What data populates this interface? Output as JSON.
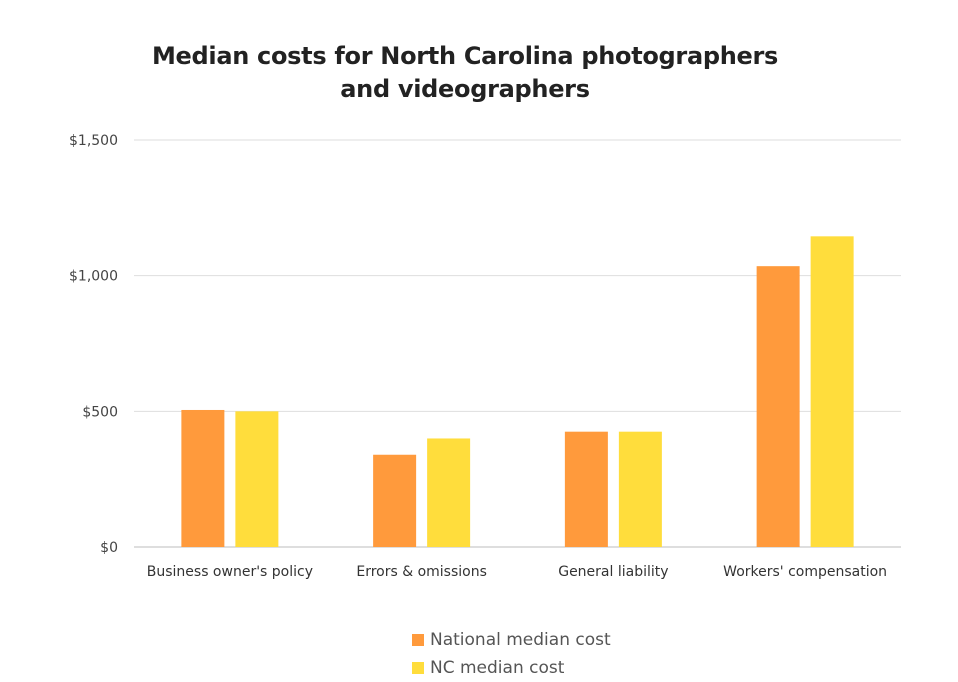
{
  "chart_data": {
    "type": "bar",
    "title": "Median costs for North Carolina photographers and videographers",
    "xlabel": "",
    "ylabel": "",
    "categories": [
      "Business owner's policy",
      "Errors & omissions",
      "General liability",
      "Workers' compensation"
    ],
    "series": [
      {
        "name": "National median cost",
        "color": "#FF9A3C",
        "values": [
          505,
          340,
          425,
          1035
        ]
      },
      {
        "name": "NC median cost",
        "color": "#FFDD3C",
        "values": [
          500,
          400,
          425,
          1145
        ]
      }
    ],
    "ylim": [
      0,
      1500
    ],
    "yticks": [
      0,
      500,
      1000,
      1500
    ],
    "ytick_labels": [
      "$0",
      "$500",
      "$1,000",
      "$1,500"
    ],
    "grid": true,
    "legend_position": "bottom"
  }
}
